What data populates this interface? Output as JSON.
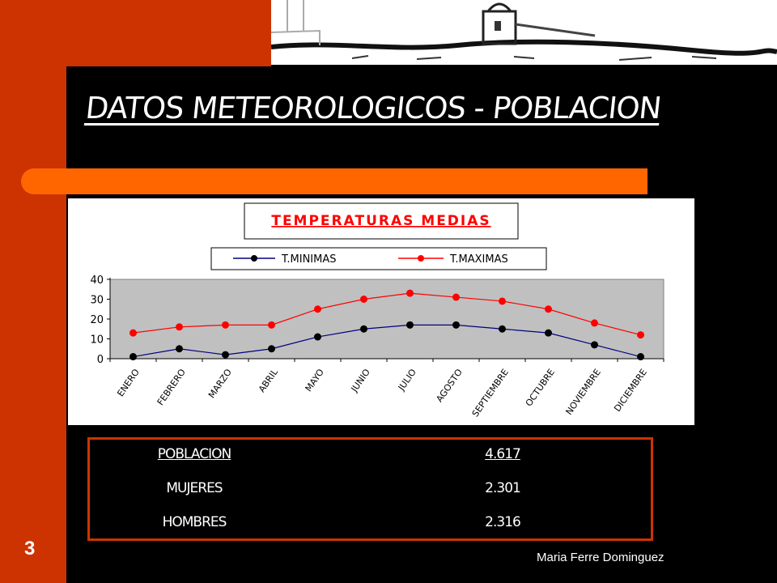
{
  "slide": {
    "title": "DATOS METEOROLOGICOS - POBLACION",
    "number": "3",
    "author": "Maria Ferre Dominguez"
  },
  "colors": {
    "accent_dark": "#cc3300",
    "accent_bright": "#ff6600",
    "background": "#000000"
  },
  "chart_data": {
    "type": "line",
    "title": "TEMPERATURAS MEDIAS",
    "categories": [
      "ENERO",
      "FEBRERO",
      "MARZO",
      "ABRIL",
      "MAYO",
      "JUNIO",
      "JULIO",
      "AGOSTO",
      "SEPTIEMBRE",
      "OCTUBRE",
      "NOVIEMBRE",
      "DICIEMBRE"
    ],
    "series": [
      {
        "name": "T.MINIMAS",
        "color": "#000000",
        "values": [
          1,
          5,
          2,
          5,
          11,
          15,
          17,
          17,
          15,
          13,
          7,
          1
        ]
      },
      {
        "name": "T.MAXIMAS",
        "color": "#ff0000",
        "values": [
          13,
          16,
          17,
          17,
          25,
          30,
          33,
          31,
          29,
          25,
          18,
          12
        ]
      }
    ],
    "yticks": [
      "0",
      "10",
      "20",
      "30",
      "40"
    ],
    "ylim": [
      0,
      40
    ],
    "grid": false,
    "legend_position": "top",
    "plot_background": "#c0c0c0"
  },
  "table": {
    "rows": [
      {
        "label": "POBLACION",
        "value": "4.617"
      },
      {
        "label": "MUJERES",
        "value": "2.301"
      },
      {
        "label": "HOMBRES",
        "value": "2.316"
      }
    ]
  }
}
